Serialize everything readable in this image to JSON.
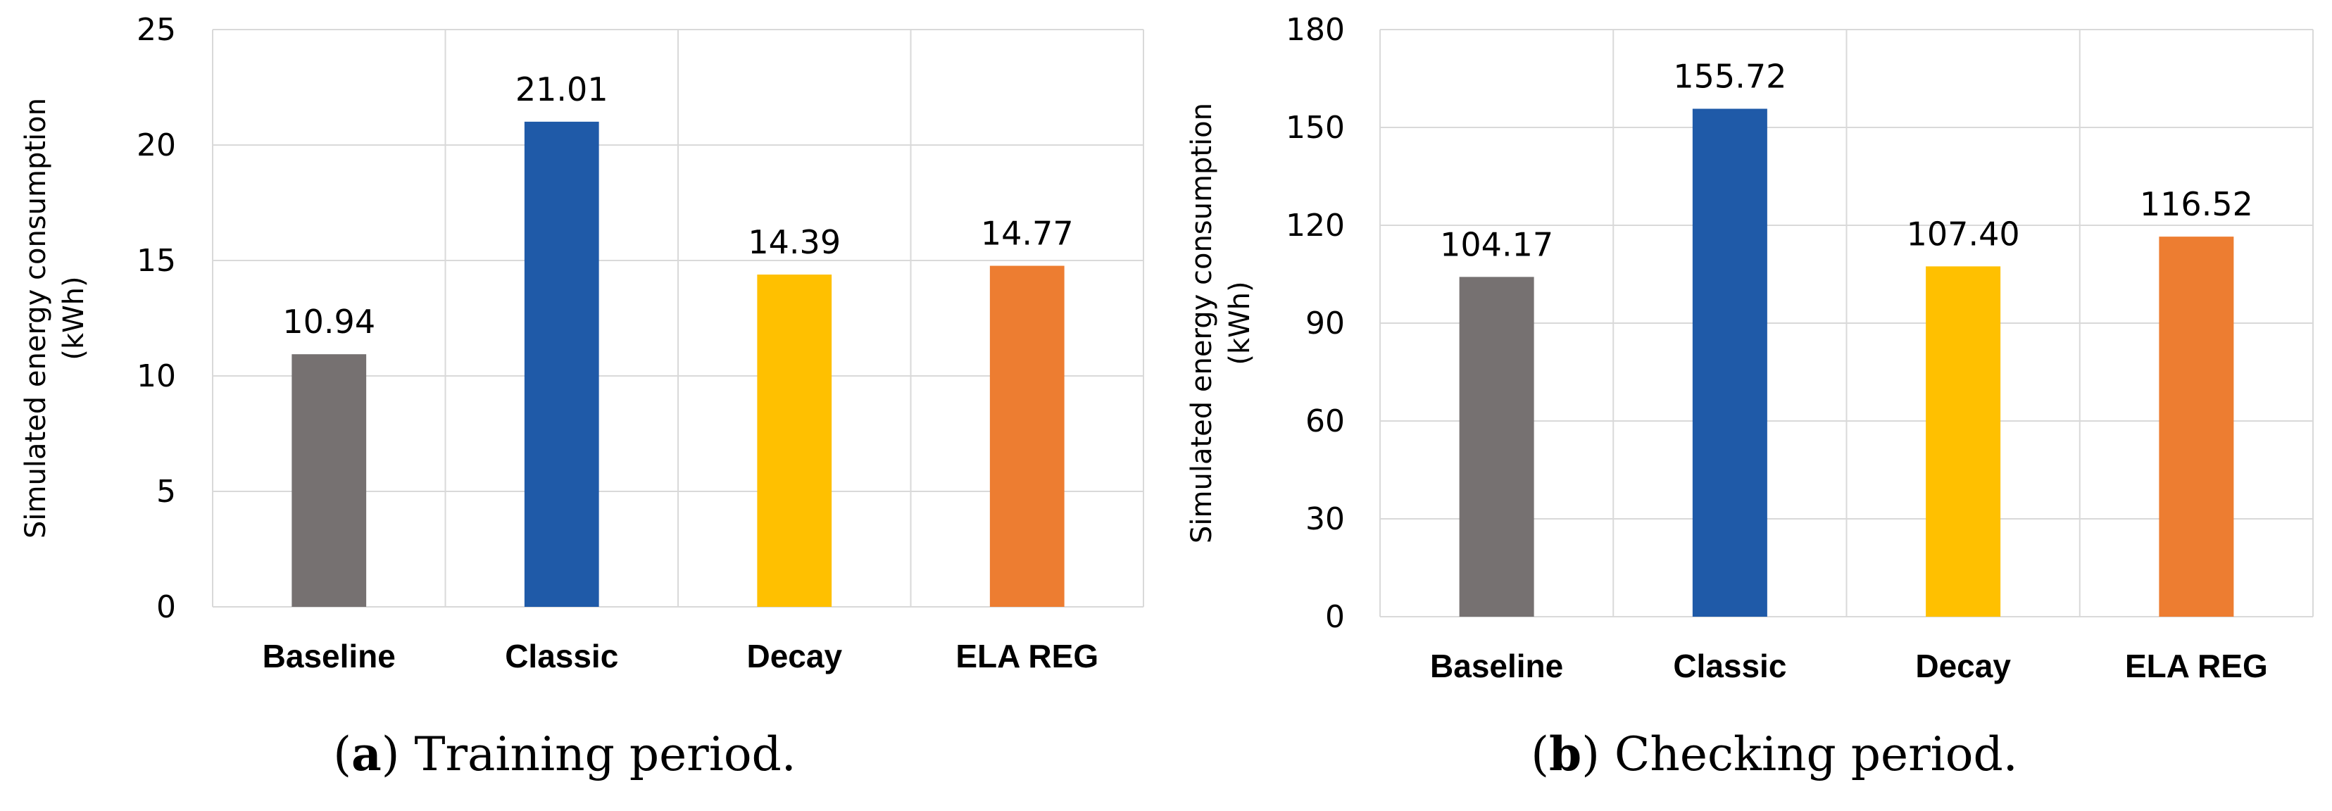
{
  "chart_data": [
    {
      "type": "bar",
      "panel_label": "(a)",
      "panel_letter": "a",
      "caption": "Training period.",
      "categories": [
        "Baseline",
        "Classic",
        "Decay",
        "ELA REG"
      ],
      "values": [
        10.94,
        21.01,
        14.39,
        14.77
      ],
      "value_labels": [
        "10.94",
        "21.01",
        "14.39",
        "14.77"
      ],
      "ylabel_line1": "Simulated energy consumption",
      "ylabel_line2": "(kWh)",
      "ylim": [
        0,
        25
      ],
      "yticks": [
        0,
        5,
        10,
        15,
        20,
        25
      ],
      "colors": [
        "#767171",
        "#1f5aa8",
        "#ffc000",
        "#ed7d31"
      ],
      "grid": true
    },
    {
      "type": "bar",
      "panel_label": "(b)",
      "panel_letter": "b",
      "caption": "Checking period.",
      "categories": [
        "Baseline",
        "Classic",
        "Decay",
        "ELA REG"
      ],
      "values": [
        104.17,
        155.72,
        107.4,
        116.52
      ],
      "value_labels": [
        "104.17",
        "155.72",
        "107.40",
        "116.52"
      ],
      "ylabel_line1": "Simulated energy consumption",
      "ylabel_line2": "(kWh)",
      "ylim": [
        0,
        180
      ],
      "yticks": [
        0,
        30,
        60,
        90,
        120,
        150,
        180
      ],
      "colors": [
        "#767171",
        "#1f5aa8",
        "#ffc000",
        "#ed7d31"
      ],
      "grid": true
    }
  ]
}
